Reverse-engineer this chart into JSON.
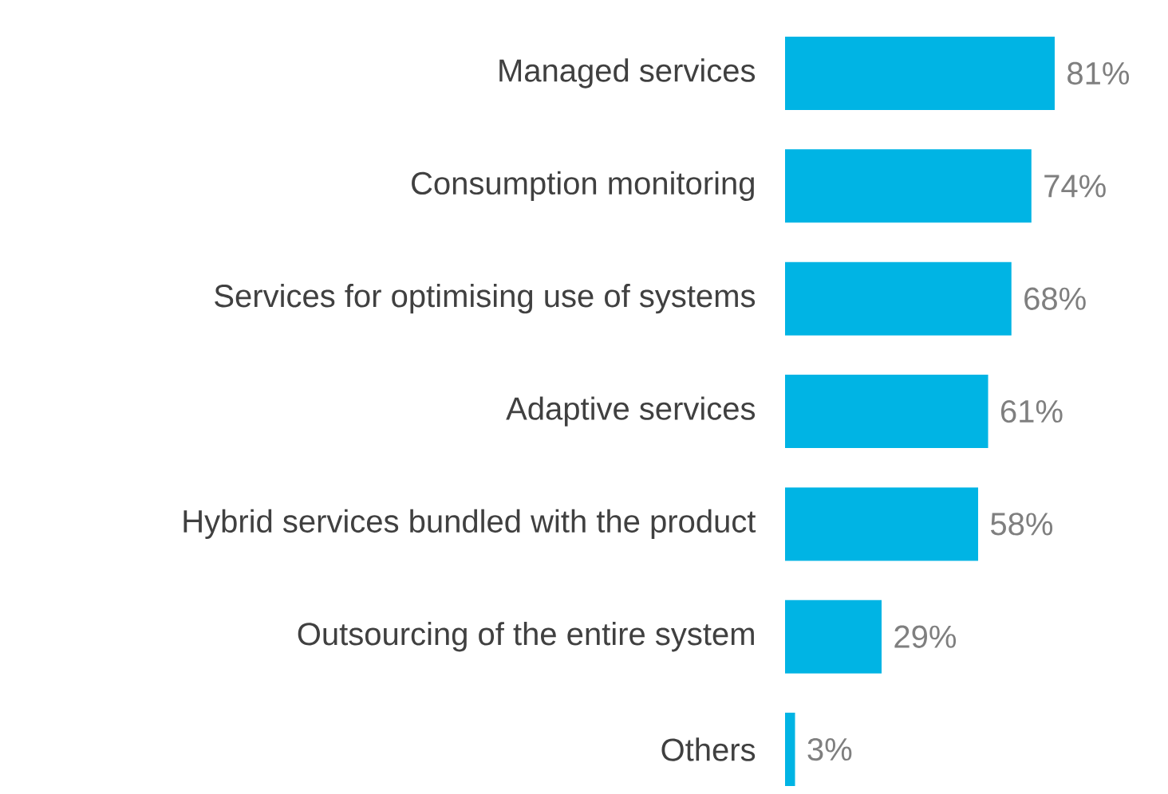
{
  "chart_data": {
    "type": "bar",
    "orientation": "horizontal",
    "categories": [
      "Managed services",
      "Consumption monitoring",
      "Services for optimising use of systems",
      "Adaptive services",
      "Hybrid services bundled with the product",
      "Outsourcing of the entire system",
      "Others"
    ],
    "values": [
      81,
      74,
      68,
      61,
      58,
      29,
      3
    ],
    "value_labels": [
      "81%",
      "74%",
      "68%",
      "61%",
      "58%",
      "29%",
      "3%"
    ],
    "color": "#00b4e4"
  }
}
